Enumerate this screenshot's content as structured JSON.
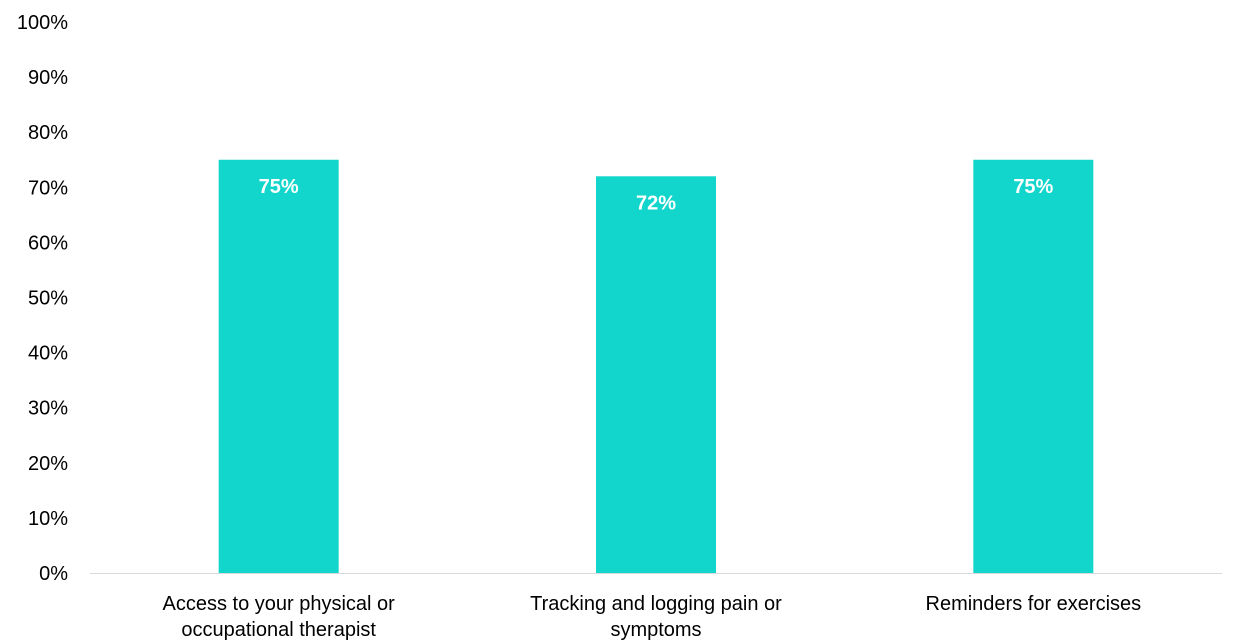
{
  "chart_data": {
    "type": "bar",
    "categories": [
      "Access to your physical or occupational therapist",
      "Tracking and logging pain or symptoms",
      "Reminders for exercises"
    ],
    "category_label_lines": [
      [
        "Access to your physical or",
        "occupational therapist"
      ],
      [
        "Tracking and logging pain or",
        "symptoms"
      ],
      [
        "Reminders for exercises"
      ]
    ],
    "values": [
      75,
      72,
      75
    ],
    "data_labels": [
      "75%",
      "72%",
      "75%"
    ],
    "ylim": [
      0,
      100
    ],
    "yticks": [
      0,
      10,
      20,
      30,
      40,
      50,
      60,
      70,
      80,
      90,
      100
    ],
    "ytick_labels": [
      "0%",
      "10%",
      "20%",
      "30%",
      "40%",
      "50%",
      "60%",
      "70%",
      "80%",
      "90%",
      "100%"
    ],
    "grid": false,
    "bar_color": "#12D6CC",
    "axis_color": "#D9D9D9"
  }
}
